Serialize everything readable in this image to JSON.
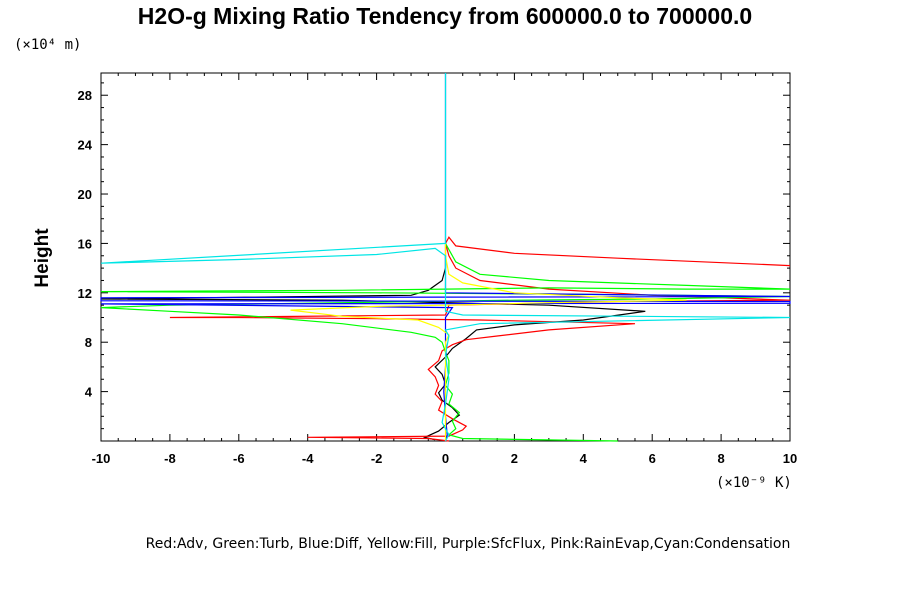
{
  "chart_data": {
    "type": "line",
    "title": "H2O-g Mixing Ratio Tendency from 600000.0 to 700000.0",
    "ylabel": "Height",
    "xlabel": "",
    "x_unit_label": "(×10⁻⁹ K)",
    "y_unit_label": "(×10⁴ m)",
    "legend_text": "Red:Adv, Green:Turb, Blue:Diff, Yellow:Fill, Purple:SfcFlux, Pink:RainEvap,Cyan:Condensation",
    "xlim": [
      -10,
      10
    ],
    "ylim": [
      0,
      29.8
    ],
    "x_ticks": [
      -10,
      -8,
      -6,
      -4,
      -2,
      0,
      2,
      4,
      6,
      8,
      10
    ],
    "x_tick_labels": [
      "-10",
      "-8",
      "-6",
      "-4",
      "-2",
      "0",
      "2",
      "4",
      "6",
      "8",
      "10"
    ],
    "y_ticks": [
      4,
      8,
      12,
      16,
      20,
      24,
      28
    ],
    "y_tick_labels": [
      "4",
      "8",
      "12",
      "16",
      "20",
      "24",
      "28"
    ],
    "grid": false,
    "series": [
      {
        "name": "Adv",
        "color": "#ff0000",
        "points": [
          [
            0.1,
            0
          ],
          [
            -0.5,
            0.2
          ],
          [
            -4,
            0.3
          ],
          [
            0.1,
            0.4
          ],
          [
            0.5,
            0.9
          ],
          [
            0.6,
            1.2
          ],
          [
            0.2,
            1.8
          ],
          [
            -0.2,
            2.5
          ],
          [
            -0.1,
            3.2
          ],
          [
            -0.3,
            3.8
          ],
          [
            -0.2,
            4.5
          ],
          [
            -0.3,
            5.2
          ],
          [
            -0.5,
            5.8
          ],
          [
            -0.2,
            6.5
          ],
          [
            -0.1,
            7.3
          ],
          [
            0.2,
            7.8
          ],
          [
            0.6,
            8.2
          ],
          [
            1.5,
            8.5
          ],
          [
            3,
            9
          ],
          [
            5.5,
            9.5
          ],
          [
            1,
            9.8
          ],
          [
            -2,
            9.9
          ],
          [
            -6,
            10
          ],
          [
            -8,
            10
          ],
          [
            0,
            10.2
          ],
          [
            0.1,
            11
          ],
          [
            5,
            11.3
          ],
          [
            10,
            11.4
          ],
          [
            6,
            11.8
          ],
          [
            3,
            12.3
          ],
          [
            1,
            13
          ],
          [
            0.3,
            14
          ],
          [
            0.1,
            15
          ],
          [
            0,
            16
          ],
          [
            0.1,
            16.5
          ],
          [
            0.3,
            15.8
          ],
          [
            2,
            15.2
          ],
          [
            5,
            14.8
          ],
          [
            10,
            14.2
          ]
        ]
      },
      {
        "name": "Turb",
        "color": "#00ff00",
        "points": [
          [
            5,
            0
          ],
          [
            0.5,
            0.2
          ],
          [
            0.1,
            0.5
          ],
          [
            0.3,
            1
          ],
          [
            0.2,
            1.6
          ],
          [
            0.4,
            2.3
          ],
          [
            0.1,
            3
          ],
          [
            0.2,
            3.8
          ],
          [
            0,
            4.5
          ],
          [
            0.1,
            5.5
          ],
          [
            0.1,
            6.5
          ],
          [
            0,
            7.2
          ],
          [
            -0.1,
            8
          ],
          [
            -0.3,
            8.4
          ],
          [
            -1,
            8.8
          ],
          [
            -3,
            9.5
          ],
          [
            -6,
            10.2
          ],
          [
            -8,
            10.5
          ],
          [
            -10,
            10.8
          ],
          [
            -8,
            11
          ],
          [
            -3,
            11.2
          ],
          [
            2,
            11.4
          ],
          [
            6,
            11.5
          ],
          [
            10,
            11.7
          ],
          [
            3,
            11.9
          ],
          [
            -2,
            12
          ],
          [
            -10,
            12.1
          ],
          [
            -3,
            12.2
          ],
          [
            3,
            12.4
          ],
          [
            7,
            12.3
          ],
          [
            10,
            12.3
          ],
          [
            7,
            12.6
          ],
          [
            3,
            13
          ],
          [
            1,
            13.5
          ],
          [
            0.3,
            14.5
          ],
          [
            0.1,
            15.5
          ],
          [
            0,
            16
          ]
        ]
      },
      {
        "name": "Diff",
        "color": "#0000ff",
        "points": [
          [
            0,
            0
          ],
          [
            0.05,
            0.5
          ],
          [
            0,
            2
          ],
          [
            -0.05,
            4
          ],
          [
            0,
            6
          ],
          [
            0.02,
            7
          ],
          [
            0,
            8
          ],
          [
            0,
            10
          ],
          [
            0.2,
            10.8
          ],
          [
            -10,
            11.1
          ],
          [
            10,
            11.15
          ],
          [
            10,
            11.3
          ],
          [
            -10,
            11.35
          ],
          [
            -10,
            11.6
          ],
          [
            10,
            11.7
          ],
          [
            0,
            12
          ],
          [
            0,
            29.8
          ]
        ]
      },
      {
        "name": "Fill",
        "color": "#ffff00",
        "points": [
          [
            0,
            0
          ],
          [
            0,
            8
          ],
          [
            0.1,
            8.6
          ],
          [
            -0.2,
            9.2
          ],
          [
            -0.8,
            9.8
          ],
          [
            -3,
            10.1
          ],
          [
            -4.5,
            10.6
          ],
          [
            -2,
            10.9
          ],
          [
            0,
            11
          ],
          [
            3,
            11.2
          ],
          [
            7,
            11.4
          ],
          [
            5,
            11.6
          ],
          [
            2,
            12
          ],
          [
            0.5,
            12.8
          ],
          [
            0.1,
            13.5
          ],
          [
            0,
            15
          ],
          [
            0,
            16
          ]
        ]
      },
      {
        "name": "SfcFlux",
        "color": "#cc00cc",
        "points": [
          [
            0,
            0
          ],
          [
            0,
            0.05
          ]
        ]
      },
      {
        "name": "RainEvap",
        "color": "#ff66cc",
        "points": [
          [
            0,
            0
          ],
          [
            0,
            0.05
          ]
        ]
      },
      {
        "name": "Condensation",
        "color": "#00e5e5",
        "points": [
          [
            0,
            0
          ],
          [
            0.1,
            0.5
          ],
          [
            -0.1,
            1.5
          ],
          [
            0,
            3
          ],
          [
            0.1,
            5
          ],
          [
            0,
            7
          ],
          [
            0.1,
            8.5
          ],
          [
            0,
            9
          ],
          [
            1,
            9.5
          ],
          [
            10,
            10
          ],
          [
            0.5,
            10.2
          ],
          [
            0,
            10.5
          ],
          [
            0,
            14
          ],
          [
            0,
            15
          ],
          [
            -0.3,
            15.6
          ],
          [
            -2,
            15.1
          ],
          [
            -6,
            14.7
          ],
          [
            -10,
            14.4
          ],
          [
            0,
            16
          ],
          [
            0,
            29.8
          ]
        ]
      }
    ],
    "extra_black_curve_points": [
      [
        -0.3,
        0.1
      ],
      [
        -0.6,
        0.3
      ],
      [
        -0.2,
        0.8
      ],
      [
        0.1,
        1.5
      ],
      [
        0.4,
        2.1
      ],
      [
        0.2,
        2.7
      ],
      [
        -0.1,
        3.3
      ],
      [
        -0.2,
        3.9
      ],
      [
        0,
        4.6
      ],
      [
        -0.1,
        5.4
      ],
      [
        -0.3,
        6
      ],
      [
        0,
        6.8
      ],
      [
        0.2,
        7.5
      ],
      [
        0.6,
        8.3
      ],
      [
        0.9,
        9
      ],
      [
        2,
        9.4
      ],
      [
        4,
        9.8
      ],
      [
        5.8,
        10.5
      ],
      [
        3,
        11
      ],
      [
        -3,
        11.4
      ],
      [
        -10,
        11.5
      ],
      [
        -1,
        11.8
      ],
      [
        -0.5,
        12.2
      ],
      [
        -0.1,
        13
      ],
      [
        0,
        14
      ],
      [
        0,
        15
      ]
    ]
  }
}
